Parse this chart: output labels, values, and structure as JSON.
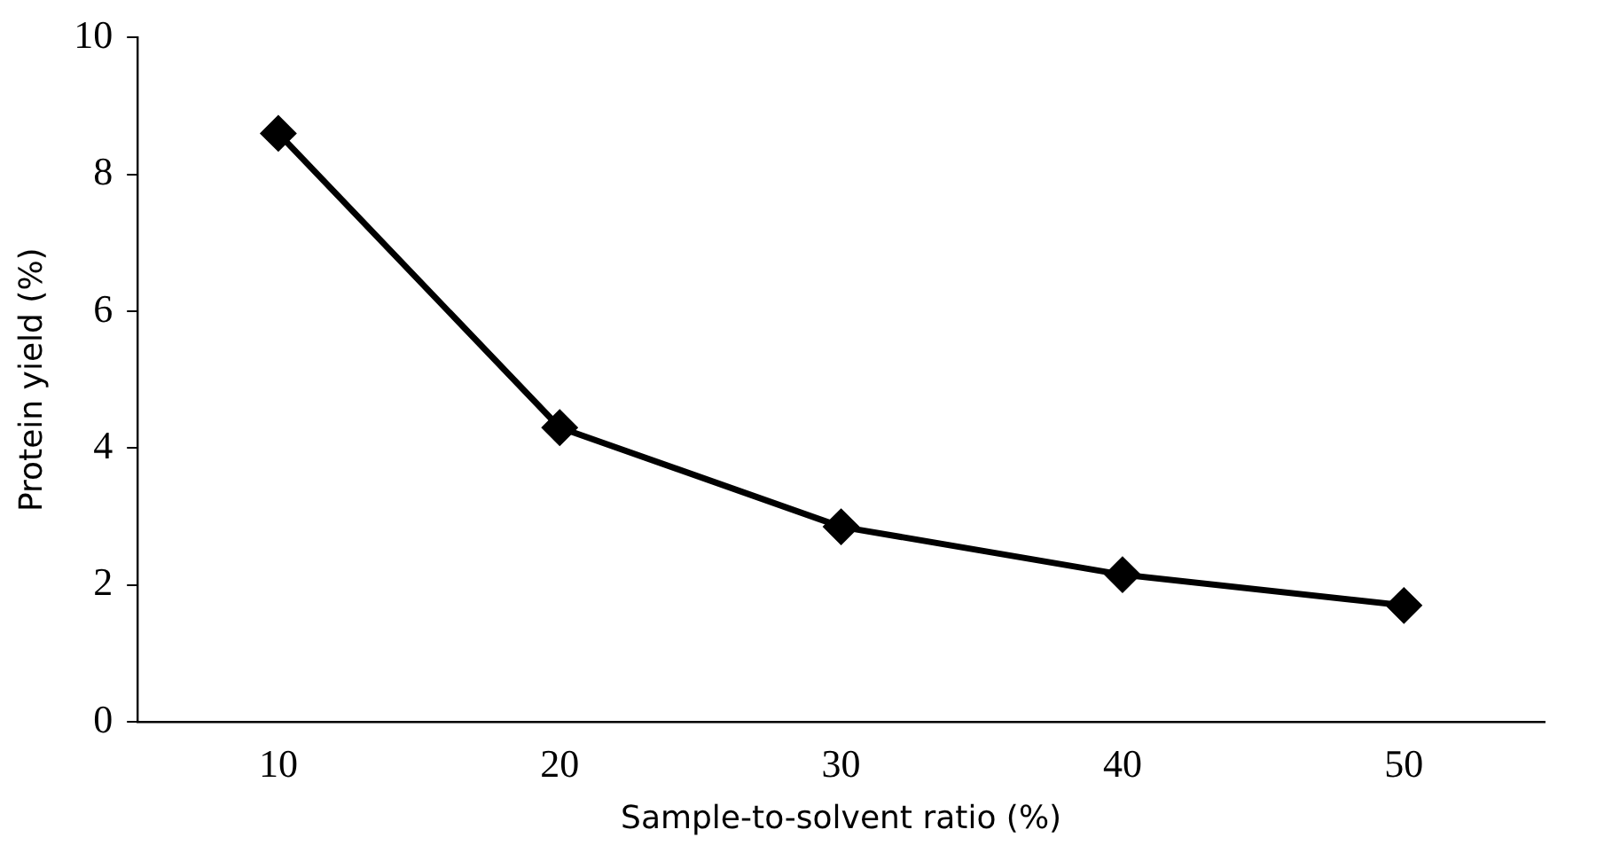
{
  "chart_data": {
    "type": "line",
    "xlabel": "Sample-to-solvent ratio (%)",
    "ylabel": "Protein yield (%)",
    "categories": [
      "10",
      "20",
      "30",
      "40",
      "50"
    ],
    "series": [
      {
        "color": "#000000",
        "values": [
          8.6,
          4.3,
          2.85,
          2.15,
          1.7
        ]
      }
    ],
    "ylim": [
      0,
      10
    ],
    "yticks": [
      0,
      2,
      4,
      6,
      8,
      10
    ],
    "grid": false,
    "legend": false,
    "marker": "diamond",
    "line_style": "solid"
  }
}
